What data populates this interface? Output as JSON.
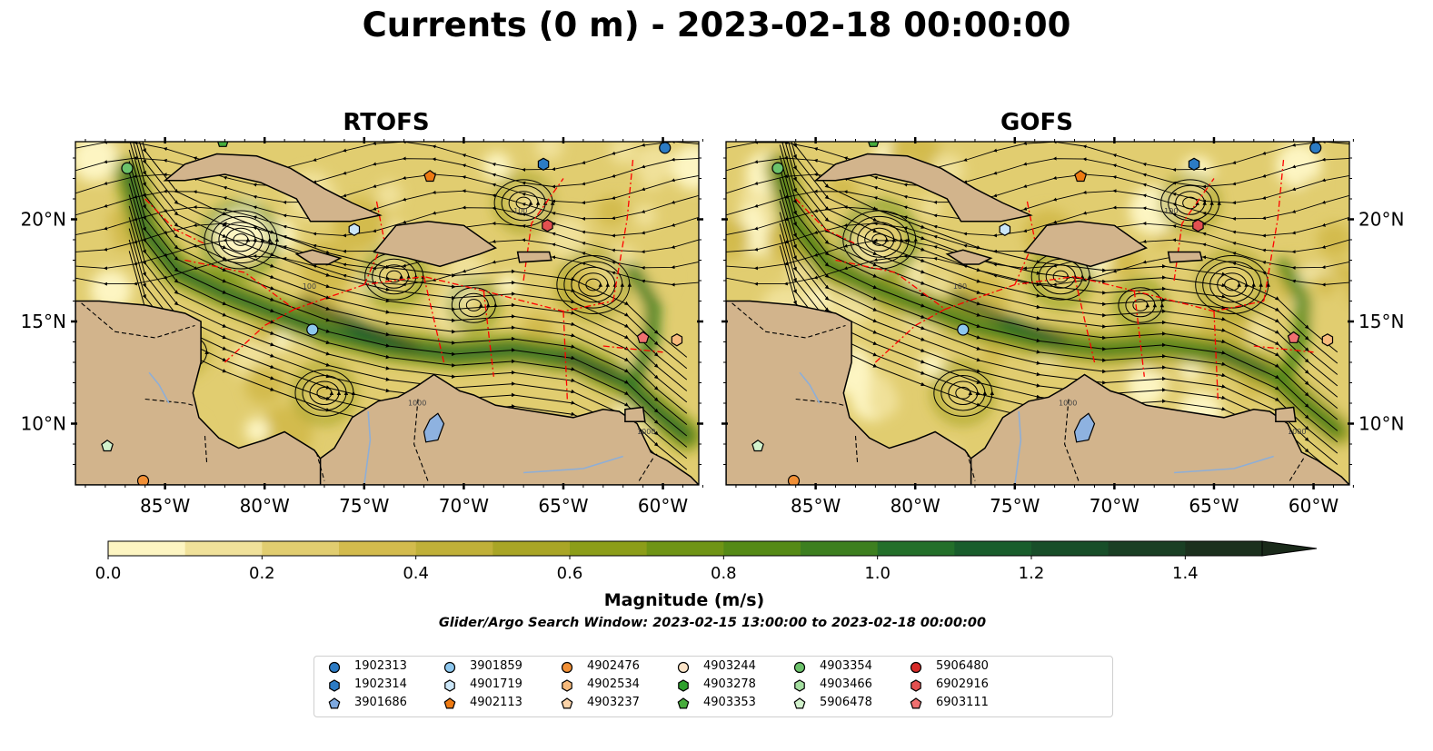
{
  "title": "Currents (0 m) - 2023-02-18 00:00:00",
  "panels": [
    {
      "title": "RTOFS"
    },
    {
      "title": "GOFS"
    }
  ],
  "map": {
    "lon_range": [
      -89.5,
      -58.2
    ],
    "lat_range": [
      7.0,
      23.8
    ],
    "lon_tick_labels": [
      "85°W",
      "80°W",
      "75°W",
      "70°W",
      "65°W",
      "60°W"
    ],
    "lon_ticks": [
      -85,
      -80,
      -75,
      -70,
      -65,
      -60
    ],
    "lat_tick_labels": [
      "20°N",
      "15°N",
      "10°N"
    ],
    "lat_ticks": [
      20,
      15,
      10
    ],
    "land_color": "#d2b48c",
    "lake_color": "#8eb2e0",
    "eez_line_color": "#ff0000",
    "contour_labels": [
      "100",
      "1000"
    ]
  },
  "colorbar": {
    "label": "Magnitude (m/s)",
    "range": [
      0.0,
      1.5
    ],
    "extend": "max",
    "tick_labels": [
      "0.0",
      "0.2",
      "0.4",
      "0.6",
      "0.8",
      "1.0",
      "1.2",
      "1.4"
    ],
    "tick_values": [
      0.0,
      0.2,
      0.4,
      0.6,
      0.8,
      1.0,
      1.2,
      1.4
    ],
    "colors": [
      "#fdf5c2",
      "#f0e19a",
      "#e1cd70",
      "#d3bb4d",
      "#c0b039",
      "#a9a526",
      "#8c9d19",
      "#6f9415",
      "#558a16",
      "#3d7f1f",
      "#236f2a",
      "#195d2c",
      "#184e29",
      "#1a3f24",
      "#1b301d"
    ],
    "extend_color": "#1a2a1a"
  },
  "search_window": "Glider/Argo Search Window: 2023-02-15 13:00:00 to 2023-02-18 00:00:00",
  "floats": [
    {
      "id": "1902313",
      "marker": "circle",
      "color": "#2c7bc4",
      "lon": -59.9,
      "lat": 23.5
    },
    {
      "id": "1902314",
      "marker": "hexagon",
      "color": "#2c7bc4",
      "lon": -66.0,
      "lat": 22.7
    },
    {
      "id": "3901686",
      "marker": "pentagon",
      "color": "#7ea9e0",
      "lon": null,
      "lat": null
    },
    {
      "id": "3901859",
      "marker": "circle",
      "color": "#8ec8ef",
      "lon": -77.6,
      "lat": 14.6
    },
    {
      "id": "4901719",
      "marker": "hexagon",
      "color": "#cbe6f8",
      "lon": -75.5,
      "lat": 19.5
    },
    {
      "id": "4902113",
      "marker": "pentagon",
      "color": "#ee7a12",
      "lon": -71.7,
      "lat": 22.1
    },
    {
      "id": "4902476",
      "marker": "circle",
      "color": "#f29036",
      "lon": -86.1,
      "lat": 7.2
    },
    {
      "id": "4902534",
      "marker": "hexagon",
      "color": "#f7ba7c",
      "lon": -59.3,
      "lat": 14.1
    },
    {
      "id": "4903237",
      "marker": "pentagon",
      "color": "#fbd3a8",
      "lon": null,
      "lat": null
    },
    {
      "id": "4903244",
      "marker": "circle",
      "color": "#fde4c8",
      "lon": null,
      "lat": null
    },
    {
      "id": "4903278",
      "marker": "hexagon",
      "color": "#2ea02d",
      "lon": null,
      "lat": null
    },
    {
      "id": "4903353",
      "marker": "pentagon",
      "color": "#47ac3c",
      "lon": -82.1,
      "lat": 23.8
    },
    {
      "id": "4903354",
      "marker": "circle",
      "color": "#6cc26b",
      "lon": -86.9,
      "lat": 22.5
    },
    {
      "id": "4903466",
      "marker": "hexagon",
      "color": "#a4dea0",
      "lon": null,
      "lat": null
    },
    {
      "id": "5906478",
      "marker": "pentagon",
      "color": "#d2f2cc",
      "lon": -87.9,
      "lat": 8.9
    },
    {
      "id": "5906480",
      "marker": "circle",
      "color": "#d62a28",
      "lon": null,
      "lat": null
    },
    {
      "id": "6902916",
      "marker": "hexagon",
      "color": "#e35050",
      "lon": -65.8,
      "lat": 19.7
    },
    {
      "id": "6903111",
      "marker": "pentagon",
      "color": "#f07070",
      "lon": -61.0,
      "lat": 14.2
    }
  ]
}
